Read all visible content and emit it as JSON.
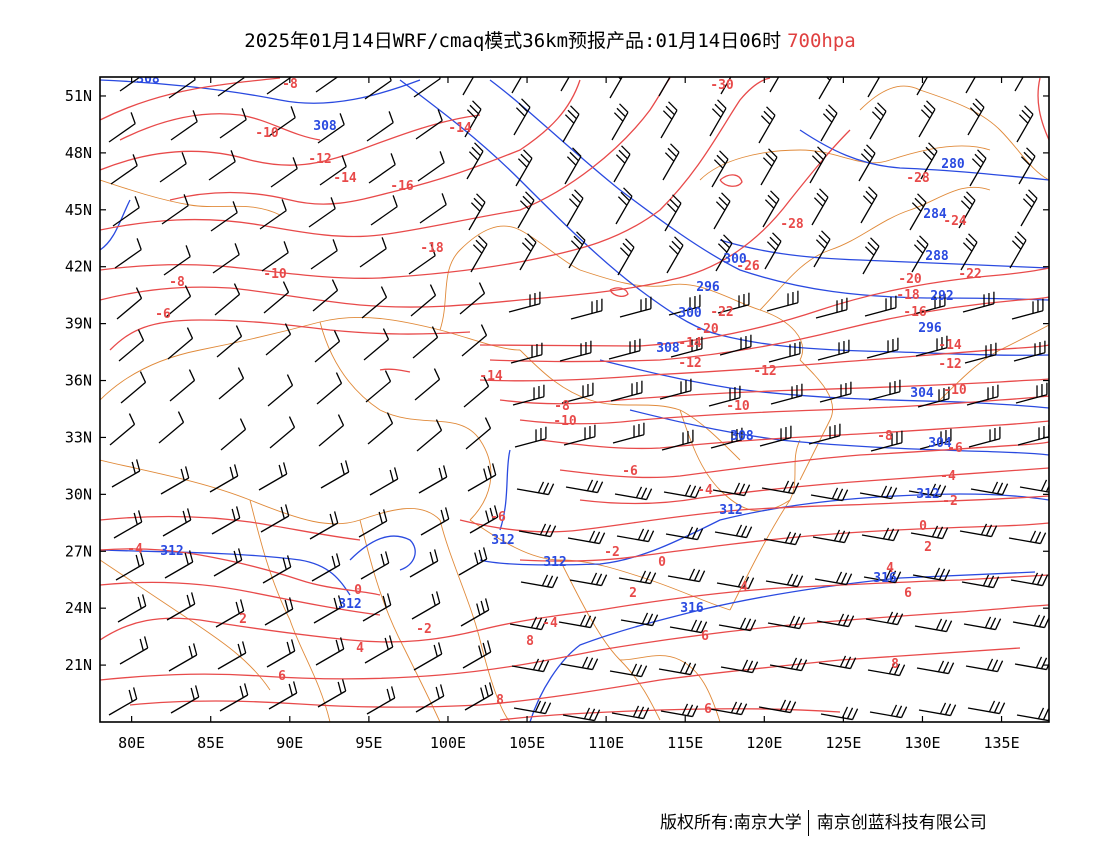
{
  "title": {
    "main": "2025年01月14日WRF/cmaq模式36km预报产品:01月14日06时",
    "level": "700hpa"
  },
  "colors": {
    "temperature": "#e84a4a",
    "geopotential": "#2a4ae0",
    "border": "#e08a3a",
    "wind": "#000000",
    "level_text": "#e04040"
  },
  "map": {
    "lon_range": [
      78,
      138
    ],
    "lat_range": [
      18,
      52
    ],
    "lon_ticks": [
      "80E",
      "85E",
      "90E",
      "95E",
      "100E",
      "105E",
      "110E",
      "115E",
      "120E",
      "125E",
      "130E",
      "135E"
    ],
    "lat_ticks": [
      "21N",
      "24N",
      "27N",
      "30N",
      "33N",
      "36N",
      "39N",
      "42N",
      "45N",
      "48N",
      "51N"
    ],
    "layers": [
      "temperature contours (°C)",
      "geopotential height contours (dagpm)",
      "wind barbs",
      "province borders"
    ]
  },
  "temp_labels": [
    "-8",
    "-10",
    "-12",
    "-14",
    "-14",
    "-16",
    "-18",
    "-10",
    "-8",
    "-6",
    "-30",
    "-28",
    "-24",
    "-22",
    "-20",
    "-18",
    "-16",
    "-14",
    "-12",
    "-10",
    "-28",
    "-26",
    "-20",
    "-22",
    "-14",
    "-12",
    "-10",
    "-8",
    "-6",
    "-4",
    "-2",
    "0",
    "2",
    "4",
    "6",
    "-12",
    "-10",
    "-8",
    "-6",
    "-4",
    "-2",
    "0",
    "2",
    "4",
    "6",
    "8",
    "-4",
    "0",
    "2",
    "4",
    "6",
    "8",
    "-2",
    "-4",
    "-6",
    "6",
    "8",
    "-14"
  ],
  "height_labels": [
    "308",
    "308",
    "296",
    "300",
    "288",
    "292",
    "296",
    "304",
    "308",
    "312",
    "312",
    "312",
    "312",
    "312",
    "316",
    "316",
    "308",
    "280",
    "284",
    "312",
    "300",
    "304"
  ],
  "copyright": {
    "owner": "版权所有:南京大学",
    "company": "南京创蓝科技有限公司"
  }
}
